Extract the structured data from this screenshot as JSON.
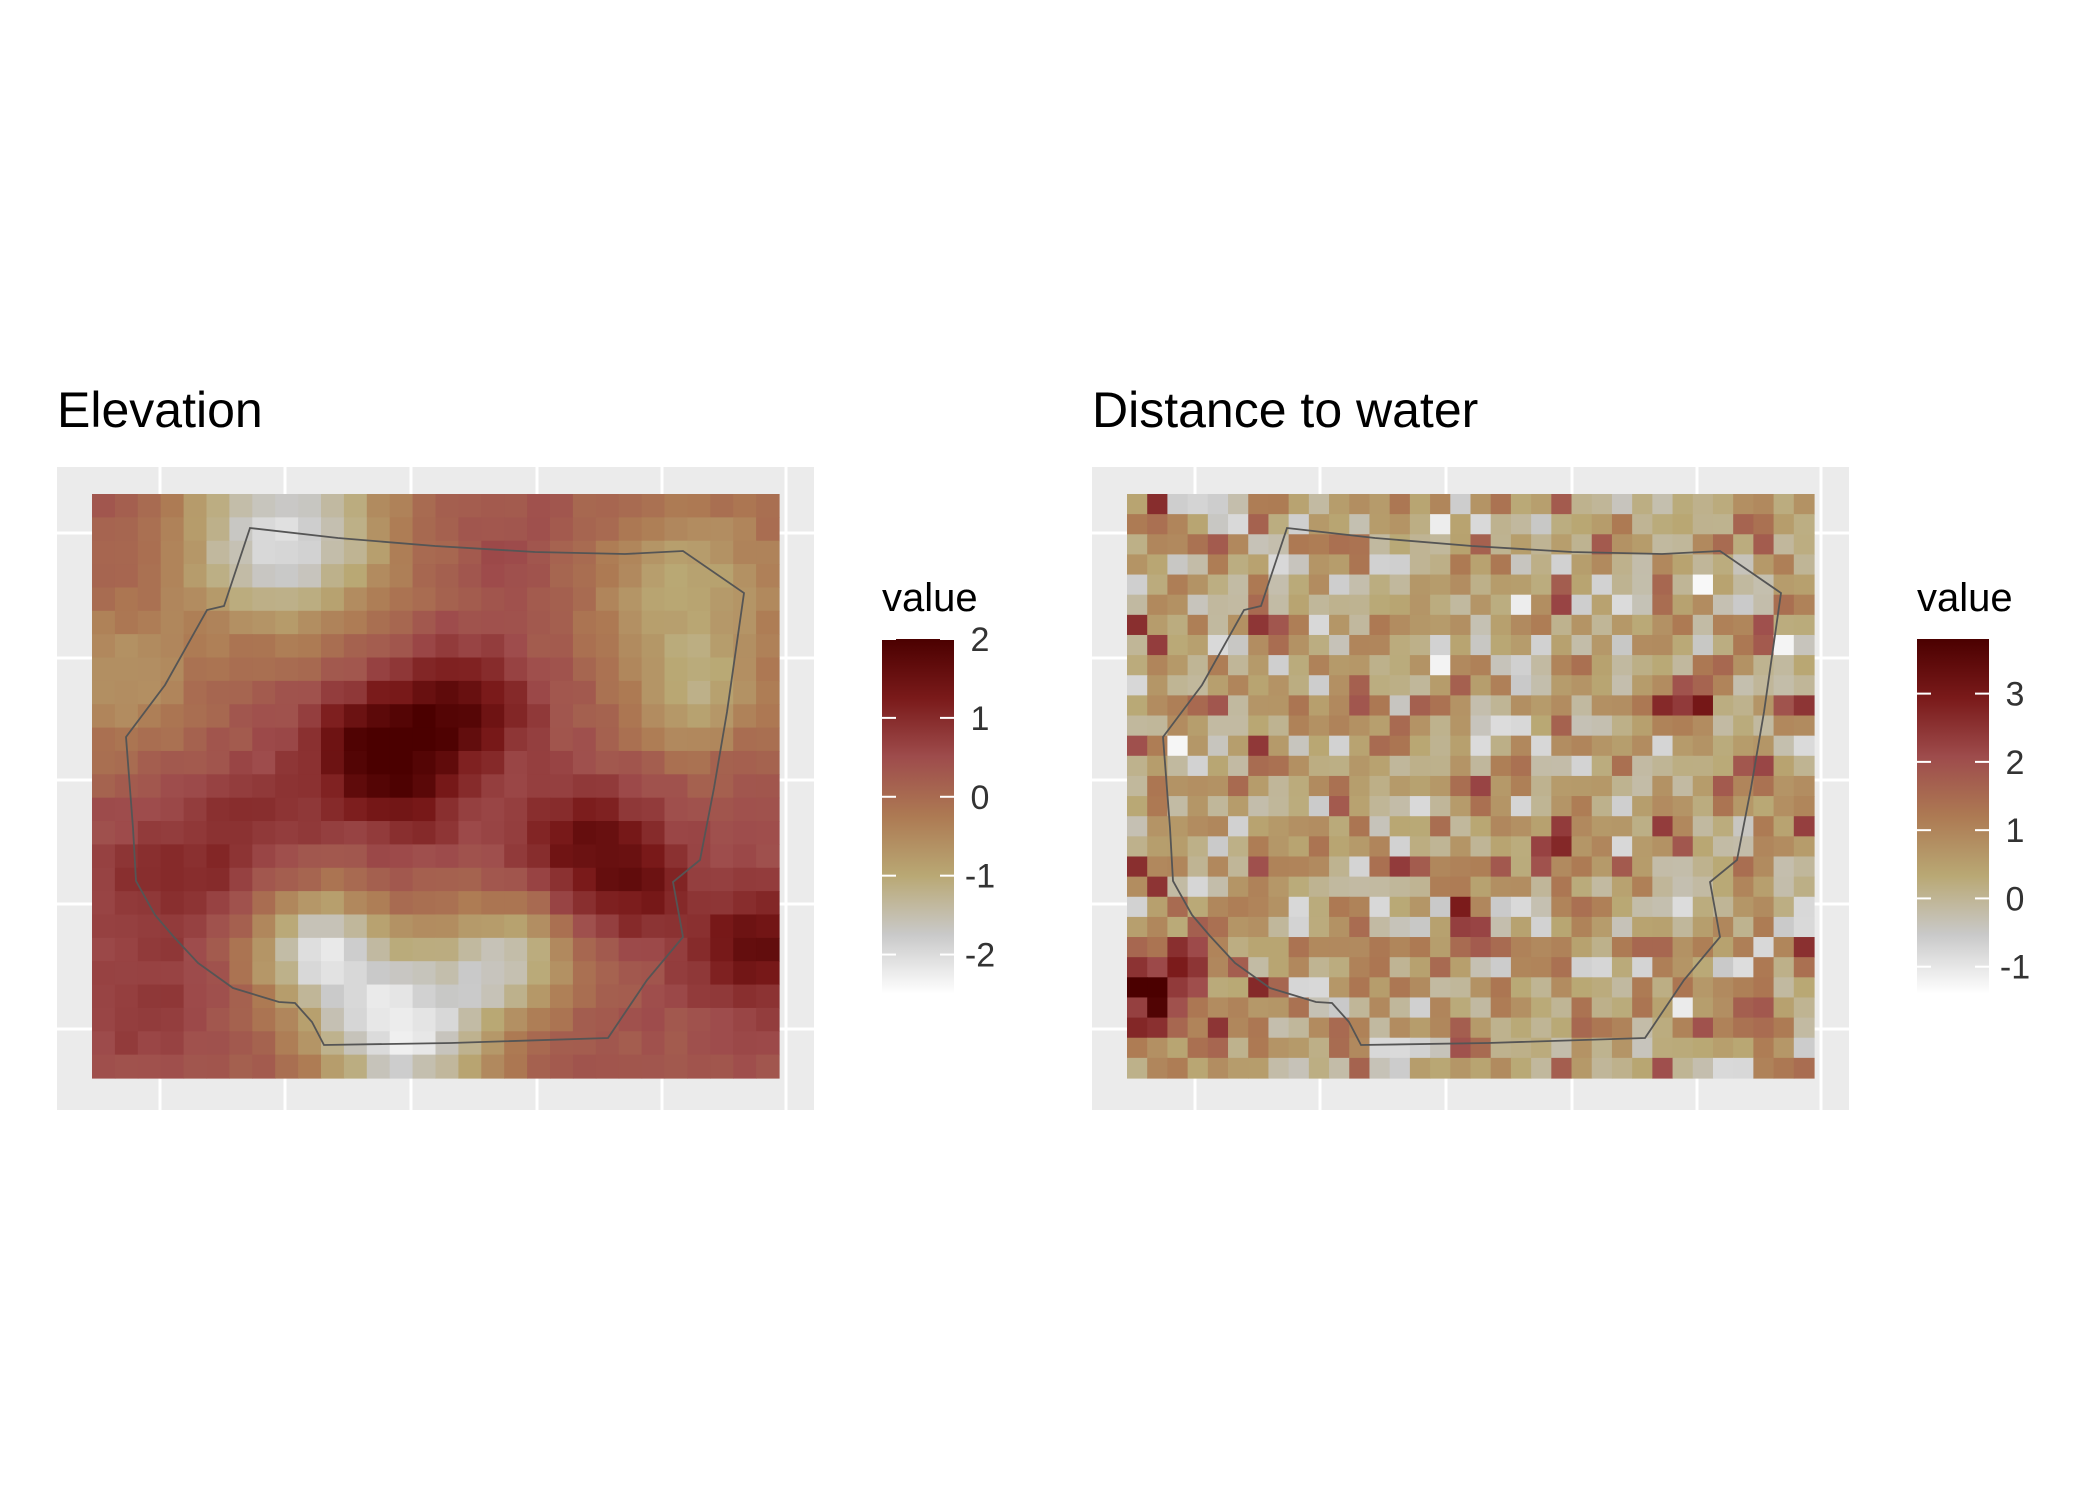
{
  "figure": {
    "background": "#ffffff",
    "panel_background": "#ebebeb",
    "gridline_color": "#ffffff",
    "boundary_color": "#555555"
  },
  "chart_data": [
    {
      "type": "heatmap",
      "title": "Elevation",
      "legend_title": "value",
      "legend_position": "right",
      "colorscale": [
        "#ffffff",
        "#c9c9c9",
        "#b9a874",
        "#ad7a53",
        "#9e4c4c",
        "#7a1a1a",
        "#4b0000"
      ],
      "value_range": [
        -2.5,
        2.0
      ],
      "legend_ticks": [
        2,
        1,
        0,
        -1,
        -2
      ],
      "grid": true,
      "grid_cols": 30,
      "grid_rows": 25,
      "features": [
        {
          "x": 0.28,
          "y": 0.08,
          "v": -2.3,
          "s": 0.11
        },
        {
          "x": 0.03,
          "y": 0.32,
          "v": -0.8,
          "s": 0.09
        },
        {
          "x": 0.63,
          "y": 0.1,
          "v": 0.6,
          "s": 0.06
        },
        {
          "x": 0.87,
          "y": 0.16,
          "v": -1.1,
          "s": 0.11
        },
        {
          "x": 0.88,
          "y": 0.35,
          "v": -1.0,
          "s": 0.07
        },
        {
          "x": 0.53,
          "y": 0.37,
          "v": 2.0,
          "s": 0.07
        },
        {
          "x": 0.4,
          "y": 0.43,
          "v": 2.0,
          "s": 0.06
        },
        {
          "x": 0.46,
          "y": 0.52,
          "v": 1.4,
          "s": 0.06
        },
        {
          "x": 0.72,
          "y": 0.6,
          "v": 1.6,
          "s": 0.07
        },
        {
          "x": 0.8,
          "y": 0.68,
          "v": 1.2,
          "s": 0.06
        },
        {
          "x": 0.97,
          "y": 0.78,
          "v": 1.7,
          "s": 0.07
        },
        {
          "x": 0.45,
          "y": 0.92,
          "v": -2.5,
          "s": 0.09
        },
        {
          "x": 0.33,
          "y": 0.78,
          "v": -2.0,
          "s": 0.07
        },
        {
          "x": 0.6,
          "y": 0.8,
          "v": -1.6,
          "s": 0.07
        },
        {
          "x": 0.12,
          "y": 0.66,
          "v": 1.1,
          "s": 0.08
        },
        {
          "x": 0.07,
          "y": 0.88,
          "v": 0.8,
          "s": 0.08
        },
        {
          "x": 0.25,
          "y": 0.55,
          "v": 0.9,
          "s": 0.07
        }
      ],
      "base": 0.35
    },
    {
      "type": "heatmap",
      "title": "Distance to water",
      "legend_title": "value",
      "legend_position": "right",
      "colorscale": [
        "#ffffff",
        "#c9c9c9",
        "#b9a874",
        "#ad7a53",
        "#9e4c4c",
        "#7a1a1a",
        "#4b0000"
      ],
      "value_range": [
        -1.4,
        3.8
      ],
      "legend_ticks": [
        3,
        2,
        1,
        0,
        -1
      ],
      "grid": true,
      "grid_cols": 34,
      "grid_rows": 29,
      "features": [
        {
          "x": 0.05,
          "y": 0.85,
          "v": 3.8,
          "s": 0.06
        },
        {
          "x": 0.83,
          "y": 0.35,
          "v": 3.0,
          "s": 0.03
        },
        {
          "x": 0.64,
          "y": 0.59,
          "v": 2.4,
          "s": 0.03
        },
        {
          "x": 0.35,
          "y": 0.4,
          "v": 1.8,
          "s": 0.03
        },
        {
          "x": 0.5,
          "y": 0.75,
          "v": 1.8,
          "s": 0.03
        },
        {
          "x": 0.95,
          "y": 0.53,
          "v": 1.6,
          "s": 0.04
        }
      ],
      "base": 0.2
    }
  ]
}
